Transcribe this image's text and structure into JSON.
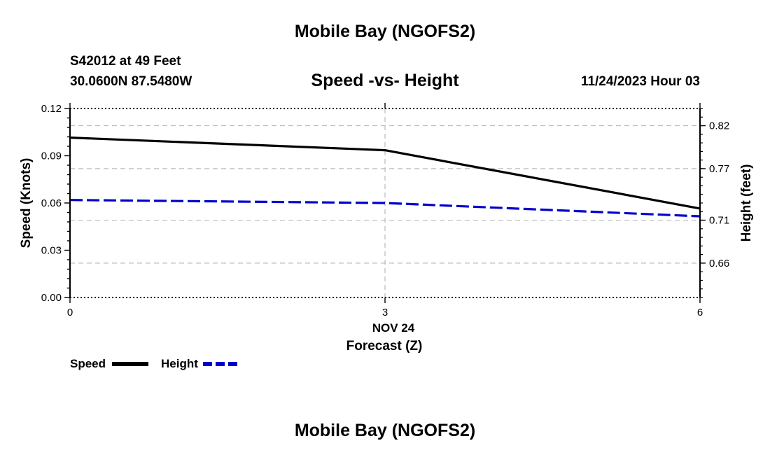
{
  "header": {
    "title": "Mobile Bay (NGOFS2)",
    "station": "S42012 at 49 Feet",
    "coords": "30.0600N  87.5480W",
    "datetime": "11/24/2023 Hour 03"
  },
  "footer": {
    "title": "Mobile Bay (NGOFS2)"
  },
  "chart_data": {
    "type": "line",
    "title": "Speed -vs- Height",
    "xlabel_date": "NOV 24",
    "xlabel": "Forecast (Z)",
    "ylabel": "Speed (Knots)",
    "ylabel_right": "Height (feet)",
    "xlim": [
      0,
      6
    ],
    "ylim": [
      0,
      0.12
    ],
    "ylim_right": [
      0.62,
      0.84
    ],
    "x_ticks": [
      "0",
      "3",
      "6"
    ],
    "y_ticks": [
      "0.00",
      "0.03",
      "0.06",
      "0.09",
      "0.12"
    ],
    "y_ticks_right": [
      "0.66",
      "0.71",
      "0.77",
      "0.82"
    ],
    "y_tick_values_right": [
      0.66,
      0.71,
      0.77,
      0.82
    ],
    "grid": true,
    "series": [
      {
        "name": "Speed",
        "axis": "left",
        "color": "#000000",
        "style": "solid",
        "x": [
          0,
          3,
          6
        ],
        "values": [
          0.1015,
          0.0935,
          0.0565
        ]
      },
      {
        "name": "Height",
        "axis": "right",
        "color": "#0000cc",
        "style": "dashed",
        "x": [
          0,
          3,
          6
        ],
        "values": [
          0.7335,
          0.73,
          0.7145
        ]
      }
    ],
    "legend": [
      {
        "label": "Speed",
        "color": "#000000",
        "style": "solid"
      },
      {
        "label": "Height",
        "color": "#0000cc",
        "style": "dashed"
      }
    ]
  }
}
